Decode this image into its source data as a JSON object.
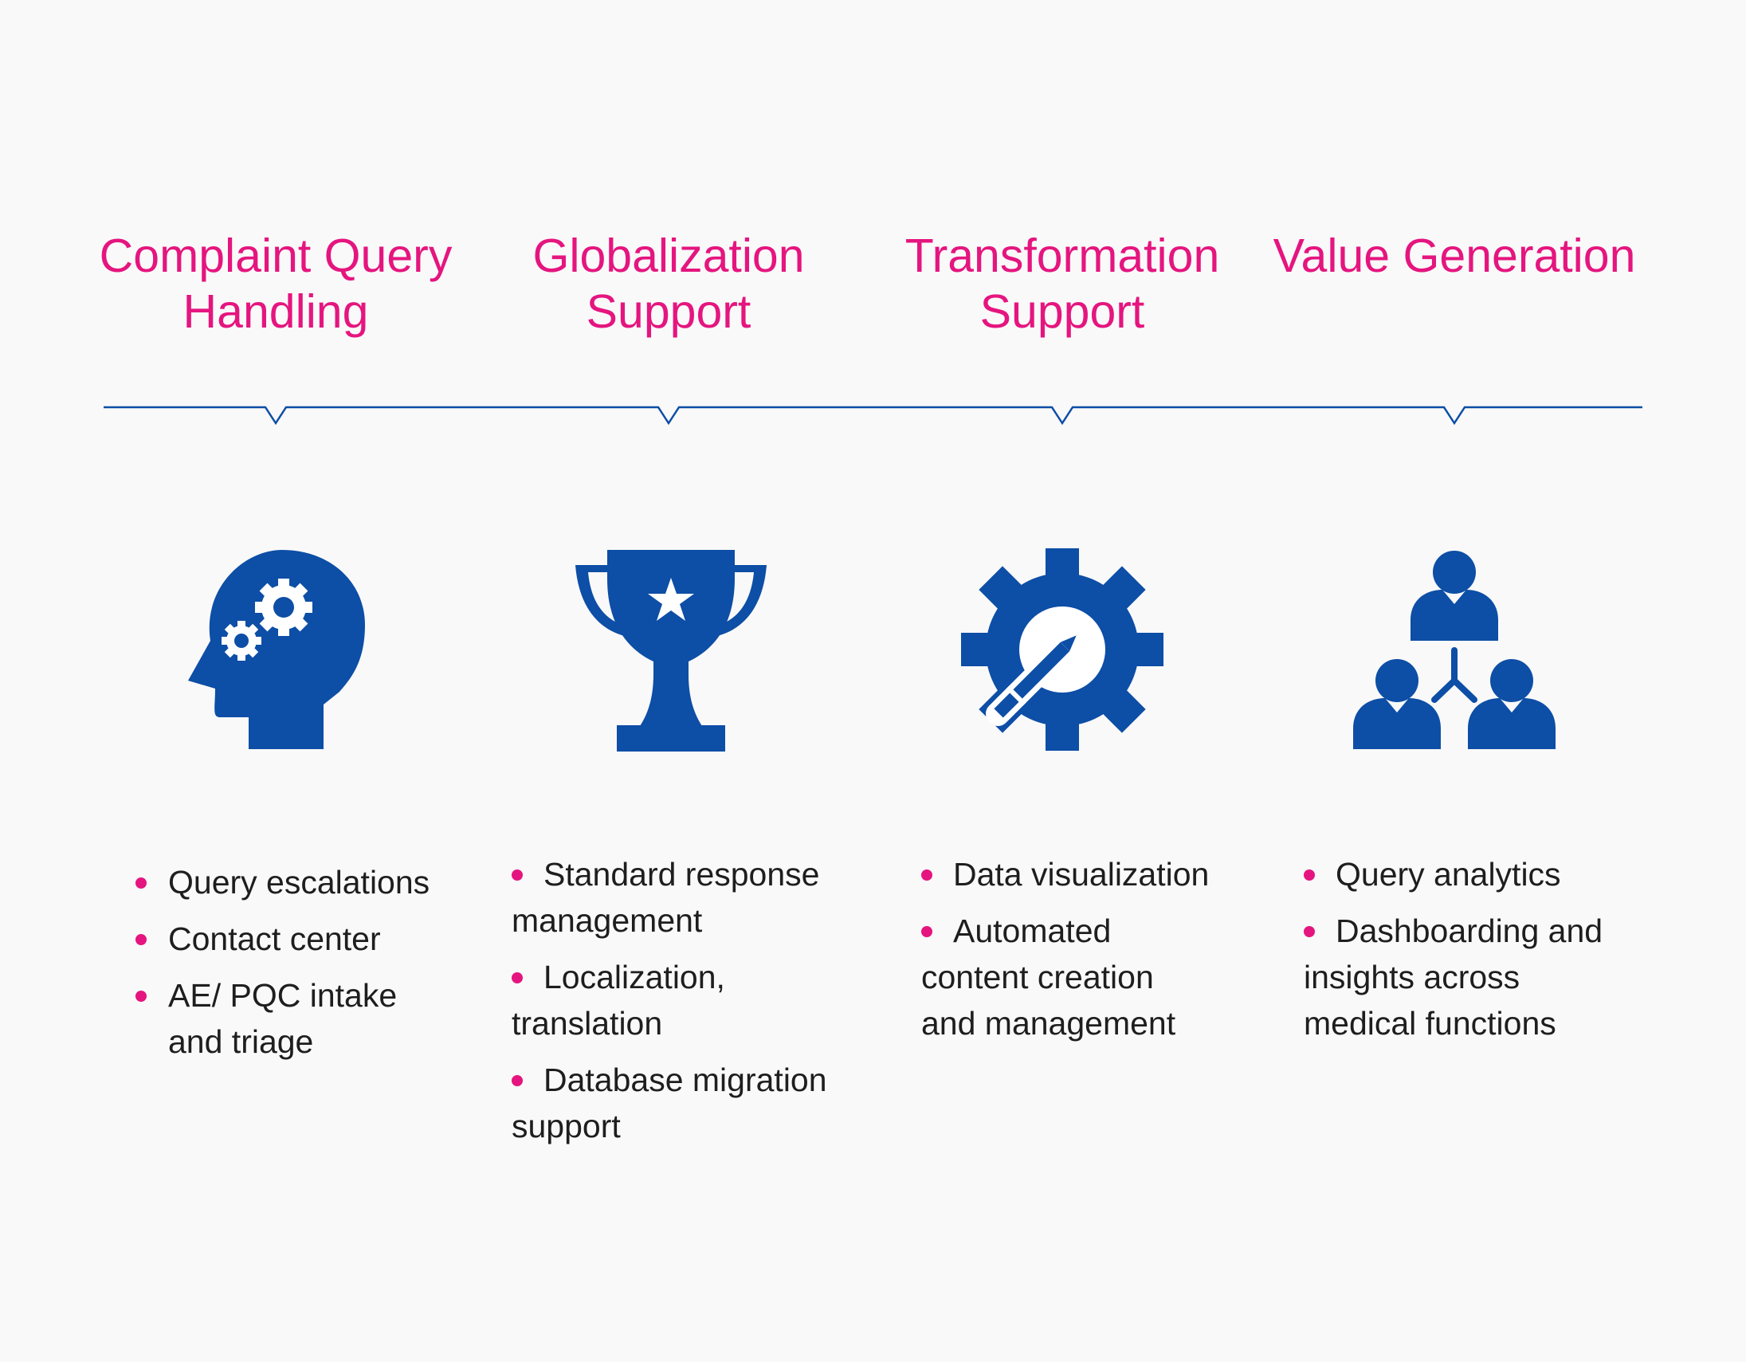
{
  "colors": {
    "accent": "#e5157f",
    "primary": "#0d4ea6",
    "text": "#1e1e1e",
    "background": "#f9f9f9"
  },
  "columns": [
    {
      "title": "Complaint Query Handling",
      "icon": "head-gears-icon",
      "items": [
        "Query escalations",
        "Contact center",
        "AE/ PQC intake and triage"
      ]
    },
    {
      "title": "Globalization Support",
      "icon": "trophy-icon",
      "items": [
        "Standard response management",
        "Localization, translation",
        "Database migration support"
      ]
    },
    {
      "title": "Transformation Support",
      "icon": "gear-pencil-icon",
      "items": [
        "Data visualization",
        "Automated content creation and management"
      ]
    },
    {
      "title": "Value Generation",
      "icon": "team-network-icon",
      "items": [
        "Query analytics",
        "Dashboarding and insights across medical functions"
      ]
    }
  ]
}
